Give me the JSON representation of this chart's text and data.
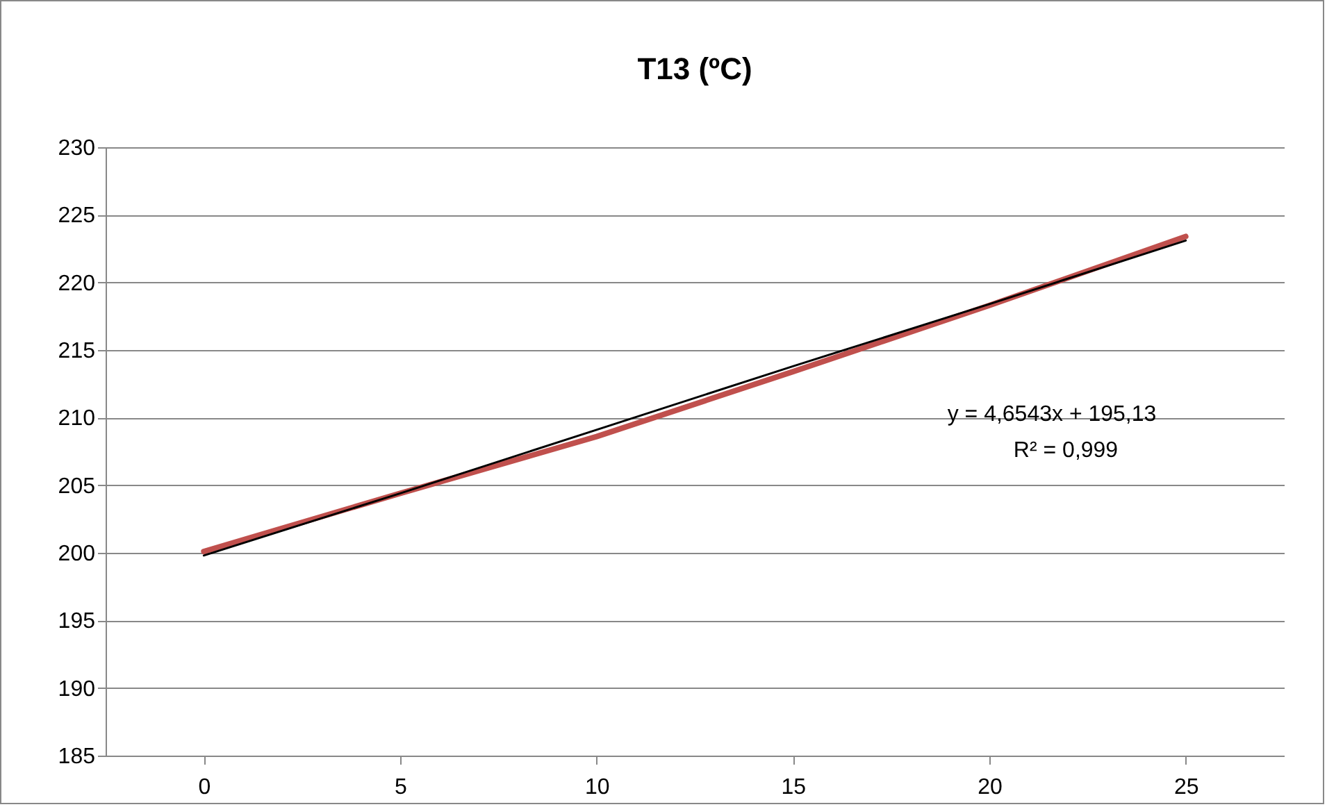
{
  "chart_data": {
    "type": "line",
    "title": "T13 (ºC)",
    "categories": [
      "0",
      "5",
      "10",
      "15",
      "20",
      "25"
    ],
    "series": [
      {
        "color": "#c0504d",
        "values": [
          200.1,
          204.4,
          208.6,
          213.4,
          218.3,
          223.4
        ]
      },
      {
        "type": "line",
        "color": "#000000",
        "values": [
          199.8,
          204.4,
          209.1,
          213.8,
          218.4,
          223.1
        ]
      }
    ],
    "ylim": [
      185,
      230
    ],
    "yticks": [
      185,
      190,
      195,
      200,
      205,
      210,
      215,
      220,
      225,
      230
    ],
    "grid": "y",
    "marker": "none",
    "line_style": "solid",
    "annotations": [
      "y = 4,6543x + 195,13",
      "R² = 0,999"
    ]
  }
}
